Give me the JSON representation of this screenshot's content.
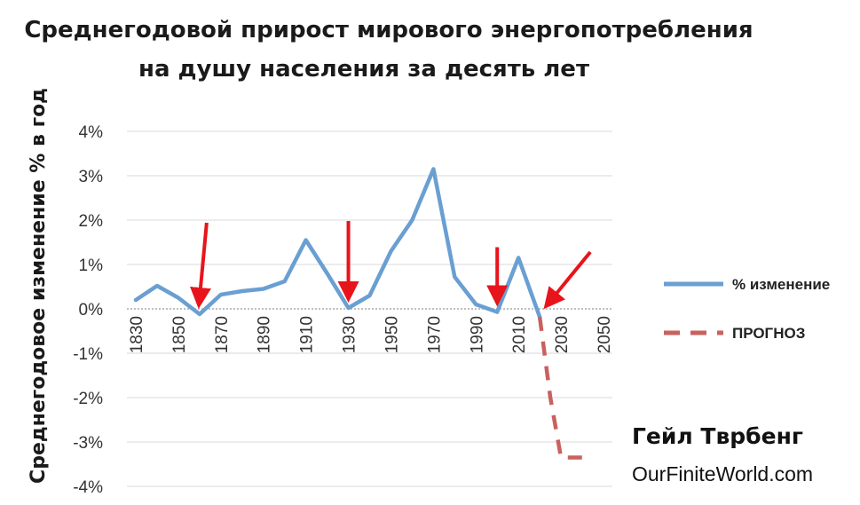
{
  "chart_data": {
    "type": "line",
    "title": "Среднегодовой прирост мирового энергопотребления",
    "subtitle": "на душу населения за десять лет",
    "xlabel": "",
    "ylabel": "Среднегодовое изменение % в год",
    "x": [
      1830,
      1840,
      1850,
      1860,
      1870,
      1880,
      1890,
      1900,
      1910,
      1920,
      1930,
      1940,
      1950,
      1960,
      1970,
      1980,
      1990,
      2000,
      2010,
      2020,
      2025,
      2030,
      2040
    ],
    "x_ticks": [
      "1830",
      "1850",
      "1870",
      "1890",
      "1910",
      "1930",
      "1950",
      "1970",
      "1990",
      "2010",
      "2030",
      "2050"
    ],
    "y_ticks": [
      "4%",
      "3%",
      "2%",
      "1%",
      "0%",
      "-1%",
      "-2%",
      "-3%",
      "-4%"
    ],
    "xlim": [
      1830,
      2050
    ],
    "ylim": [
      -4,
      4
    ],
    "grid": "horizontal",
    "series": [
      {
        "name": "% изменение",
        "color": "#6a9fd2",
        "style": "solid",
        "x": [
          1830,
          1840,
          1850,
          1860,
          1870,
          1880,
          1890,
          1900,
          1910,
          1920,
          1930,
          1940,
          1950,
          1960,
          1970,
          1980,
          1990,
          2000,
          2010,
          2020
        ],
        "values": [
          0.2,
          0.52,
          0.25,
          -0.12,
          0.32,
          0.4,
          0.45,
          0.62,
          1.55,
          0.8,
          0.02,
          0.3,
          1.3,
          2.0,
          3.15,
          0.72,
          0.1,
          -0.07,
          1.15,
          -0.18
        ]
      },
      {
        "name": "ПРОГНОЗ",
        "color": "#c9615e",
        "style": "dashed",
        "x": [
          2020,
          2025,
          2030,
          2040
        ],
        "values": [
          -0.18,
          -2.0,
          -3.35,
          -3.35
        ]
      }
    ],
    "annotations": [
      {
        "type": "arrow",
        "x": 1860,
        "value": -0.12,
        "color": "#e8141b"
      },
      {
        "type": "arrow",
        "x": 1930,
        "value": 0.02,
        "color": "#e8141b"
      },
      {
        "type": "arrow",
        "x": 2000,
        "value": -0.07,
        "color": "#e8141b"
      },
      {
        "type": "arrow",
        "x": 2020,
        "value": -0.18,
        "color": "#e8141b"
      }
    ],
    "legend_position": "right",
    "credit": {
      "author": "Гейл Тврбенг",
      "site": "OurFiniteWorld.com"
    }
  }
}
